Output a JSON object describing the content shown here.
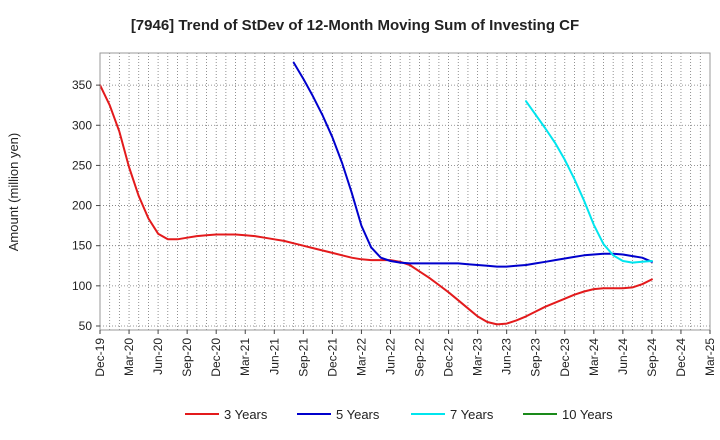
{
  "chart_data": {
    "type": "line",
    "title": "[7946]  Trend of StDev of 12-Month Moving Sum of Investing CF",
    "xlabel": "",
    "ylabel": "Amount (million yen)",
    "ylim": [
      45,
      390
    ],
    "xlim": [
      "2019-12",
      "2025-03"
    ],
    "yticks": [
      50,
      100,
      150,
      200,
      250,
      300,
      350
    ],
    "xticks": [
      "Dec-19",
      "Mar-20",
      "Jun-20",
      "Sep-20",
      "Dec-20",
      "Mar-21",
      "Jun-21",
      "Sep-21",
      "Dec-21",
      "Mar-22",
      "Jun-22",
      "Sep-22",
      "Dec-22",
      "Mar-23",
      "Jun-23",
      "Sep-23",
      "Dec-23",
      "Mar-24",
      "Jun-24",
      "Sep-24",
      "Dec-24",
      "Mar-25"
    ],
    "grid": true,
    "legend_position": "bottom",
    "series": [
      {
        "name": "3 Years",
        "color": "#e31a1c",
        "points": [
          [
            "2019-12",
            350
          ],
          [
            "2020-01",
            325
          ],
          [
            "2020-02",
            292
          ],
          [
            "2020-03",
            248
          ],
          [
            "2020-04",
            212
          ],
          [
            "2020-05",
            184
          ],
          [
            "2020-06",
            165
          ],
          [
            "2020-07",
            158
          ],
          [
            "2020-08",
            158
          ],
          [
            "2020-09",
            160
          ],
          [
            "2020-10",
            162
          ],
          [
            "2020-11",
            163
          ],
          [
            "2020-12",
            164
          ],
          [
            "2021-01",
            164
          ],
          [
            "2021-02",
            164
          ],
          [
            "2021-03",
            163
          ],
          [
            "2021-04",
            162
          ],
          [
            "2021-05",
            160
          ],
          [
            "2021-06",
            158
          ],
          [
            "2021-07",
            156
          ],
          [
            "2021-08",
            153
          ],
          [
            "2021-09",
            150
          ],
          [
            "2021-10",
            147
          ],
          [
            "2021-11",
            144
          ],
          [
            "2021-12",
            141
          ],
          [
            "2022-01",
            138
          ],
          [
            "2022-02",
            135
          ],
          [
            "2022-03",
            133
          ],
          [
            "2022-04",
            132
          ],
          [
            "2022-05",
            132
          ],
          [
            "2022-06",
            132
          ],
          [
            "2022-07",
            130
          ],
          [
            "2022-08",
            126
          ],
          [
            "2022-09",
            118
          ],
          [
            "2022-10",
            110
          ],
          [
            "2022-11",
            101
          ],
          [
            "2022-12",
            92
          ],
          [
            "2023-01",
            82
          ],
          [
            "2023-02",
            72
          ],
          [
            "2023-03",
            62
          ],
          [
            "2023-04",
            55
          ],
          [
            "2023-05",
            52
          ],
          [
            "2023-06",
            53
          ],
          [
            "2023-07",
            57
          ],
          [
            "2023-08",
            62
          ],
          [
            "2023-09",
            68
          ],
          [
            "2023-10",
            74
          ],
          [
            "2023-11",
            79
          ],
          [
            "2023-12",
            84
          ],
          [
            "2024-01",
            89
          ],
          [
            "2024-02",
            93
          ],
          [
            "2024-03",
            96
          ],
          [
            "2024-04",
            97
          ],
          [
            "2024-05",
            97
          ],
          [
            "2024-06",
            97
          ],
          [
            "2024-07",
            98
          ],
          [
            "2024-08",
            102
          ],
          [
            "2024-09",
            108
          ]
        ]
      },
      {
        "name": "5 Years",
        "color": "#0000cc",
        "points": [
          [
            "2021-08",
            378
          ],
          [
            "2021-09",
            358
          ],
          [
            "2021-10",
            336
          ],
          [
            "2021-11",
            312
          ],
          [
            "2021-12",
            285
          ],
          [
            "2022-01",
            253
          ],
          [
            "2022-02",
            216
          ],
          [
            "2022-03",
            175
          ],
          [
            "2022-04",
            148
          ],
          [
            "2022-05",
            135
          ],
          [
            "2022-06",
            131
          ],
          [
            "2022-07",
            129
          ],
          [
            "2022-08",
            128
          ],
          [
            "2022-09",
            128
          ],
          [
            "2022-10",
            128
          ],
          [
            "2022-11",
            128
          ],
          [
            "2022-12",
            128
          ],
          [
            "2023-01",
            128
          ],
          [
            "2023-02",
            127
          ],
          [
            "2023-03",
            126
          ],
          [
            "2023-04",
            125
          ],
          [
            "2023-05",
            124
          ],
          [
            "2023-06",
            124
          ],
          [
            "2023-07",
            125
          ],
          [
            "2023-08",
            126
          ],
          [
            "2023-09",
            128
          ],
          [
            "2023-10",
            130
          ],
          [
            "2023-11",
            132
          ],
          [
            "2023-12",
            134
          ],
          [
            "2024-01",
            136
          ],
          [
            "2024-02",
            138
          ],
          [
            "2024-03",
            139
          ],
          [
            "2024-04",
            140
          ],
          [
            "2024-05",
            140
          ],
          [
            "2024-06",
            139
          ],
          [
            "2024-07",
            137
          ],
          [
            "2024-08",
            135
          ],
          [
            "2024-09",
            130
          ]
        ]
      },
      {
        "name": "7 Years",
        "color": "#00e5ee",
        "points": [
          [
            "2023-08",
            330
          ],
          [
            "2023-09",
            313
          ],
          [
            "2023-10",
            296
          ],
          [
            "2023-11",
            278
          ],
          [
            "2023-12",
            257
          ],
          [
            "2024-01",
            233
          ],
          [
            "2024-02",
            206
          ],
          [
            "2024-03",
            176
          ],
          [
            "2024-04",
            152
          ],
          [
            "2024-05",
            138
          ],
          [
            "2024-06",
            131
          ],
          [
            "2024-07",
            129
          ],
          [
            "2024-08",
            130
          ],
          [
            "2024-09",
            131
          ]
        ]
      },
      {
        "name": "10 Years",
        "color": "#1a8a1a",
        "points": []
      }
    ]
  }
}
